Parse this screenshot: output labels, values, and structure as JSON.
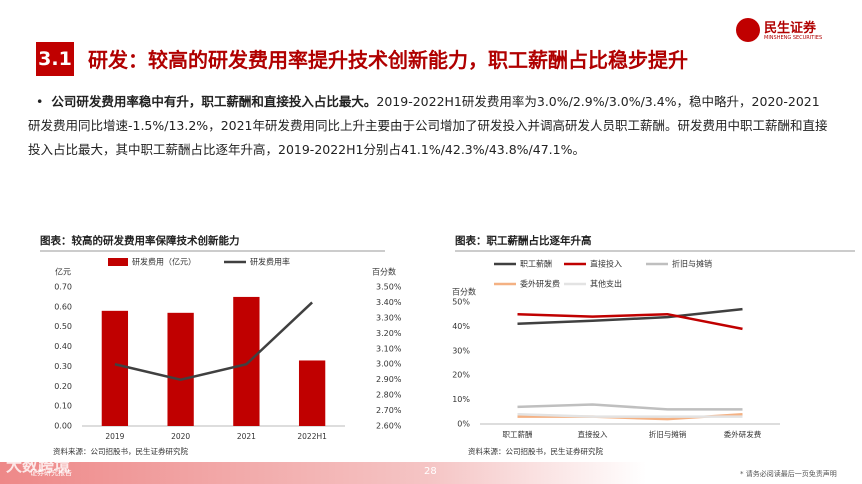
{
  "header": {
    "section": "3.1",
    "title": "研发：较高的研发费用率提升技术创新能力，职工薪酬占比稳步提升",
    "logo": "民生证券",
    "logo_en": "MINSHENG SECURITIES"
  },
  "bullet": {
    "lead": "公司研发费用率稳中有升，职工薪酬和直接投入占比最大。",
    "text": "2019-2022H1研发费用率为3.0%/2.9%/3.0%/3.4%，稳中略升，2020-2021研发费用同比增速-1.5%/13.2%，2021年研发费用同比上升主要由于公司增加了研发投入并调高研发人员职工薪酬。研发费用中职工薪酬和直接投入占比最大，其中职工薪酬占比逐年升高，2019-2022H1分别占41.1%/42.3%/43.8%/47.1%。"
  },
  "chart_data": [
    {
      "type": "bar",
      "title": "图表：较高的研发费用率保障技术创新能力",
      "y_label": "亿元",
      "y2_label": "百分数",
      "source": "资料来源：公司招股书，民生证券研究院",
      "categories": [
        "2019",
        "2020",
        "2021",
        "2022H1"
      ],
      "series": [
        {
          "name": "研发费用（亿元）",
          "type": "bar",
          "color": "#c00000",
          "values": [
            0.58,
            0.57,
            0.65,
            0.33
          ]
        },
        {
          "name": "研发费用率",
          "type": "line",
          "axis": "y2",
          "color": "#404040",
          "values": [
            3.0,
            2.9,
            3.0,
            3.4
          ]
        }
      ],
      "ylim": [
        0,
        0.7
      ],
      "yticks": [
        {
          "value": 0,
          "label": "0.00"
        },
        {
          "value": 0.1,
          "label": "0.10"
        },
        {
          "value": 0.2,
          "label": "0.20"
        },
        {
          "value": 0.3,
          "label": "0.30"
        },
        {
          "value": 0.4,
          "label": "0.40"
        },
        {
          "value": 0.5,
          "label": "0.50"
        },
        {
          "value": 0.6,
          "label": "0.60"
        },
        {
          "value": 0.7,
          "label": "0.70"
        }
      ],
      "y2lim": [
        2.6,
        3.5
      ],
      "y2ticks": [
        {
          "value": 2.6,
          "label": "2.60%"
        },
        {
          "value": 2.7,
          "label": "2.70%"
        },
        {
          "value": 2.8,
          "label": "2.80%"
        },
        {
          "value": 2.9,
          "label": "2.90%"
        },
        {
          "value": 3.0,
          "label": "3.00%"
        },
        {
          "value": 3.1,
          "label": "3.10%"
        },
        {
          "value": 3.2,
          "label": "3.20%"
        },
        {
          "value": 3.3,
          "label": "3.30%"
        },
        {
          "value": 3.4,
          "label": "3.40%"
        },
        {
          "value": 3.5,
          "label": "3.50%"
        }
      ]
    },
    {
      "type": "line",
      "title": "图表：职工薪酬占比逐年升高",
      "y_label": "百分数",
      "source": "资料来源：公司招股书，民生证券研究院",
      "categories": [
        "职工薪酬",
        "直接投入",
        "折旧与摊销",
        "委外研发费"
      ],
      "series": [
        {
          "name": "职工薪酬",
          "color": "#404040",
          "values": [
            41.1,
            42.3,
            43.8,
            47.1
          ]
        },
        {
          "name": "直接投入",
          "color": "#c00000",
          "values": [
            45,
            44,
            45,
            39
          ]
        },
        {
          "name": "折旧与摊销",
          "color": "#bfbfbf",
          "values": [
            7,
            8,
            6,
            6
          ]
        },
        {
          "name": "委外研发费",
          "color": "#f4b183",
          "values": [
            3,
            3,
            2,
            4
          ]
        },
        {
          "name": "其他支出",
          "color": "#e3e3e3",
          "values": [
            4,
            3,
            3,
            3
          ]
        }
      ],
      "ylim": [
        0,
        50
      ],
      "yticks": [
        {
          "value": 0,
          "label": "0%"
        },
        {
          "value": 10,
          "label": "10%"
        },
        {
          "value": 20,
          "label": "20%"
        },
        {
          "value": 30,
          "label": "30%"
        },
        {
          "value": 40,
          "label": "40%"
        },
        {
          "value": 50,
          "label": "50%"
        }
      ]
    }
  ],
  "footer": {
    "page": "28",
    "disclaimer": "* 请务必阅读最后一页免责声明",
    "left": "证券研究报告",
    "watermark": "大数跨境"
  }
}
